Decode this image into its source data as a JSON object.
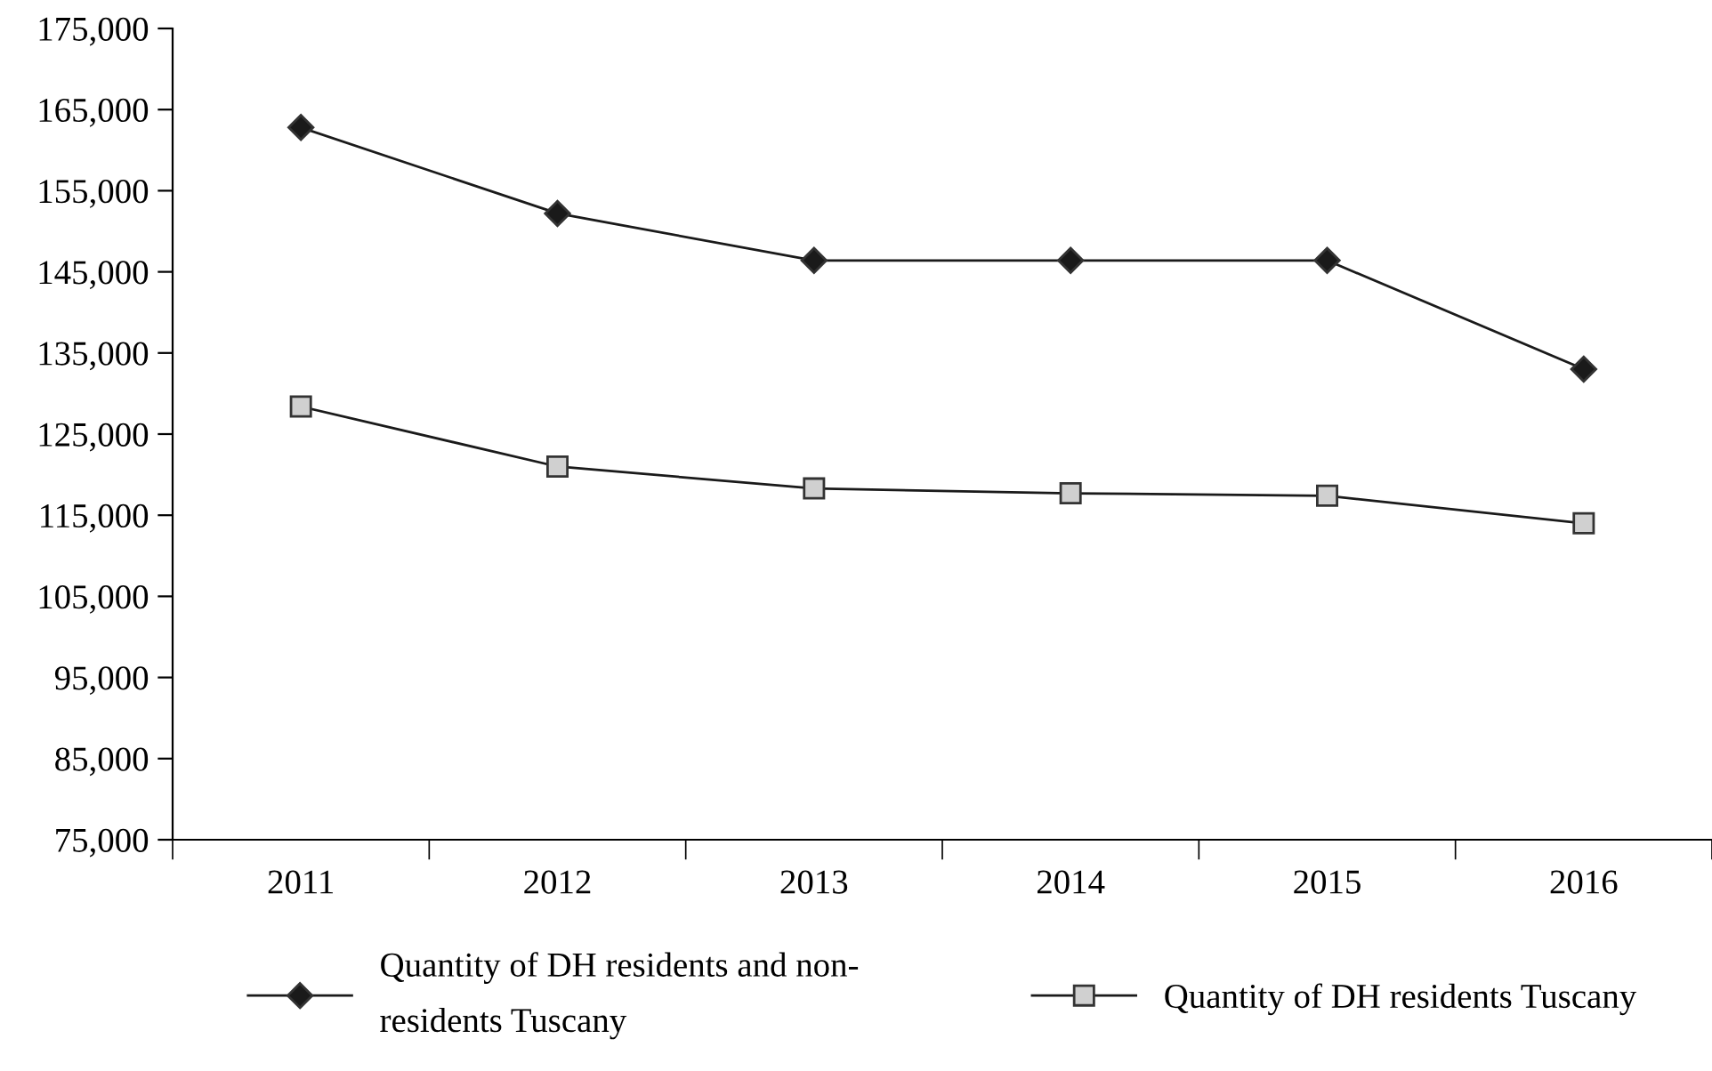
{
  "chart_data": {
    "type": "line",
    "categories": [
      "2011",
      "2012",
      "2013",
      "2014",
      "2015",
      "2016"
    ],
    "series": [
      {
        "name": "Quantity of DH residents and non-residents Tuscany",
        "color": "#1a1a1a",
        "marker": "diamond",
        "values": [
          162800,
          152200,
          146400,
          146400,
          146400,
          133000
        ]
      },
      {
        "name": "Quantity of DH residents Tuscany",
        "color": "#d0d0d0",
        "marker": "square",
        "values": [
          128400,
          121000,
          118300,
          117700,
          117400,
          114000
        ]
      }
    ],
    "ylim": [
      75000,
      175000
    ],
    "yticks": [
      {
        "value": 75000,
        "label": "75,000"
      },
      {
        "value": 85000,
        "label": "85,000"
      },
      {
        "value": 95000,
        "label": "95,000"
      },
      {
        "value": 105000,
        "label": "105,000"
      },
      {
        "value": 115000,
        "label": "115,000"
      },
      {
        "value": 125000,
        "label": "125,000"
      },
      {
        "value": 135000,
        "label": "135,000"
      },
      {
        "value": 145000,
        "label": "145,000"
      },
      {
        "value": 155000,
        "label": "155,000"
      },
      {
        "value": 165000,
        "label": "165,000"
      },
      {
        "value": 175000,
        "label": "175,000"
      }
    ],
    "grid": false,
    "legend": "bottom",
    "line_style": "solid"
  }
}
